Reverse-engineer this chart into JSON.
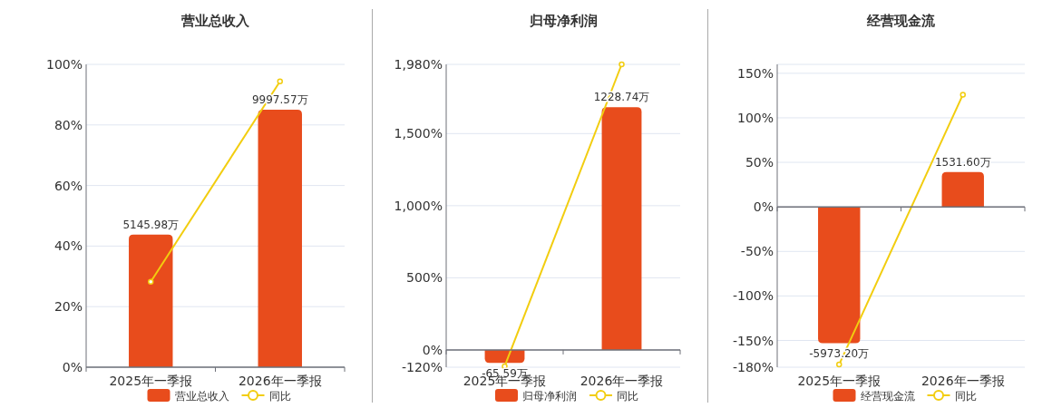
{
  "chart_data": [
    {
      "type": "bar",
      "title": "营业总收入",
      "categories": [
        "2025年一季报",
        "2026年一季报"
      ],
      "series": [
        {
          "name": "营业总收入",
          "axis": "y2",
          "color": "#e84c1c",
          "values": [
            5145.98,
            9997.57
          ],
          "value_labels": [
            "5145.98万",
            "9997.57万"
          ]
        },
        {
          "name": "同比",
          "type": "line",
          "color": "#f2cd0f",
          "values": [
            28.2,
            94.4
          ]
        }
      ],
      "ylim": [
        0,
        100
      ],
      "yticks": [
        {
          "value": 0,
          "label": "0%"
        },
        {
          "value": 20,
          "label": "20%"
        },
        {
          "value": 40,
          "label": "40%"
        },
        {
          "value": 60,
          "label": "60%"
        },
        {
          "value": 80,
          "label": "80%"
        },
        {
          "value": 100,
          "label": "100%"
        }
      ],
      "grid": "y",
      "legend": "bottom",
      "marker": "circle"
    },
    {
      "type": "bar",
      "title": "归母净利润",
      "categories": [
        "2025年一季报",
        "2026年一季报"
      ],
      "series": [
        {
          "name": "归母净利润",
          "axis": "y2",
          "color": "#e84c1c",
          "values": [
            -65.59,
            1228.74
          ],
          "value_labels": [
            "-65.59万",
            "1228.74万"
          ]
        },
        {
          "name": "同比",
          "type": "line",
          "color": "#f2cd0f",
          "values": [
            -113,
            1980
          ]
        }
      ],
      "ylim": [
        -120,
        1980
      ],
      "yticks": [
        {
          "value": -120,
          "label": "-120%"
        },
        {
          "value": 0,
          "label": "0%"
        },
        {
          "value": 500,
          "label": "500%"
        },
        {
          "value": 1000,
          "label": "1,000%"
        },
        {
          "value": 1500,
          "label": "1,500%"
        },
        {
          "value": 1980,
          "label": "1,980%"
        }
      ],
      "grid": "y",
      "legend": "bottom",
      "marker": "circle"
    },
    {
      "type": "bar",
      "title": "经营现金流",
      "categories": [
        "2025年一季报",
        "2026年一季报"
      ],
      "series": [
        {
          "name": "经营现金流",
          "axis": "y2",
          "color": "#e84c1c",
          "values": [
            -5973.2,
            1531.6
          ],
          "value_labels": [
            "-5973.20万",
            "1531.60万"
          ]
        },
        {
          "name": "同比",
          "type": "line",
          "color": "#f2cd0f",
          "values": [
            -177,
            126
          ]
        }
      ],
      "ylim": [
        -180,
        160
      ],
      "yticks": [
        {
          "value": -180,
          "label": "-180%"
        },
        {
          "value": -150,
          "label": "-150%"
        },
        {
          "value": -100,
          "label": "-100%"
        },
        {
          "value": -50,
          "label": "-50%"
        },
        {
          "value": 0,
          "label": "0%"
        },
        {
          "value": 50,
          "label": "50%"
        },
        {
          "value": 100,
          "label": "100%"
        },
        {
          "value": 150,
          "label": "150%"
        },
        {
          "value": 160,
          "label": null
        }
      ],
      "grid": "y",
      "legend": "bottom",
      "marker": "circle"
    }
  ]
}
